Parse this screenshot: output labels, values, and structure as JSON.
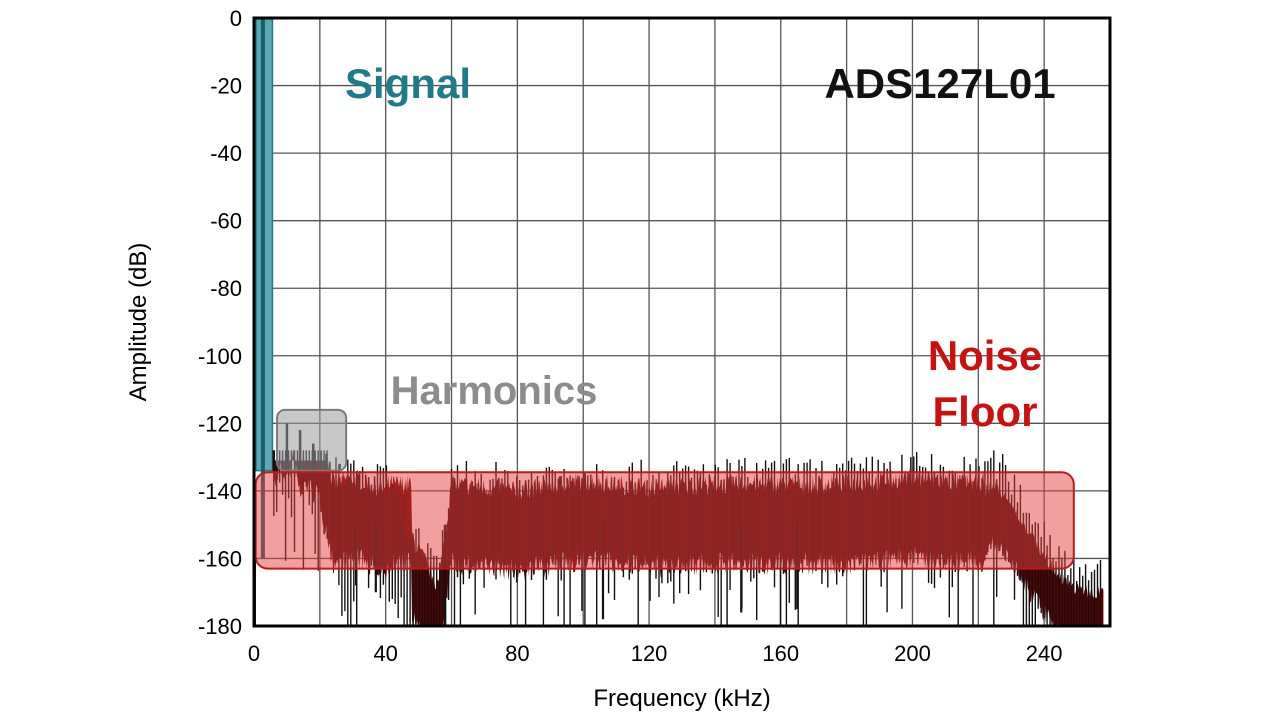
{
  "chart_data": {
    "type": "line",
    "xlabel": "Frequency (kHz)",
    "ylabel": "Amplitude (dB)",
    "xlim": [
      0,
      260
    ],
    "ylim": [
      -180,
      0
    ],
    "x_ticks": [
      0,
      40,
      80,
      120,
      160,
      200,
      240
    ],
    "y_ticks": [
      0,
      -20,
      -40,
      -60,
      -80,
      -100,
      -120,
      -140,
      -160,
      -180
    ],
    "x_tick_labels": [
      "0",
      "40",
      "80",
      "120",
      "160",
      "200",
      "240"
    ],
    "y_tick_labels": [
      "0",
      "-20",
      "-40",
      "-60",
      "-80",
      "-100",
      "-120",
      "-140",
      "-160",
      "-180"
    ],
    "grid": true,
    "series": [
      {
        "x": [
          0,
          2,
          4,
          6,
          8,
          10,
          12,
          14,
          16,
          18,
          20,
          24,
          30,
          40,
          56,
          60,
          80,
          100,
          120,
          140,
          160,
          180,
          200,
          220,
          225,
          230,
          235,
          240,
          245,
          250,
          255,
          258
        ],
        "y": [
          -162,
          -150,
          0,
          -128,
          -122,
          -125,
          -119,
          -130,
          -126,
          -129,
          -131,
          -150,
          -148,
          -152,
          -180,
          -150,
          -152,
          -149,
          -151,
          -150,
          -150,
          -150,
          -148,
          -150,
          -146,
          -152,
          -160,
          -167,
          -174,
          -177,
          -178,
          -178
        ]
      }
    ],
    "harmonics": {
      "x": [
        6,
        10,
        14,
        18,
        22,
        26
      ],
      "y": [
        -128,
        -120,
        -122,
        -126,
        -129,
        -132
      ]
    },
    "annotations": [
      {
        "text": "Signal",
        "color": "#1f7a8a"
      },
      {
        "text": "ADS127L01",
        "color": "#111111"
      },
      {
        "text": "Harmonics",
        "color": "#8c8c8c"
      },
      {
        "text": "Noise",
        "color": "#cc1010"
      },
      {
        "text": "Floor",
        "color": "#cc1010"
      }
    ],
    "colors": {
      "signal": "#1f7a8a",
      "signal_fill": "#5aa9b5",
      "noise_line": "#111111",
      "noise_fill_dark": "#5c0000",
      "noise_box": "#e34040",
      "harmonics_box": "#9a9a9a"
    }
  }
}
